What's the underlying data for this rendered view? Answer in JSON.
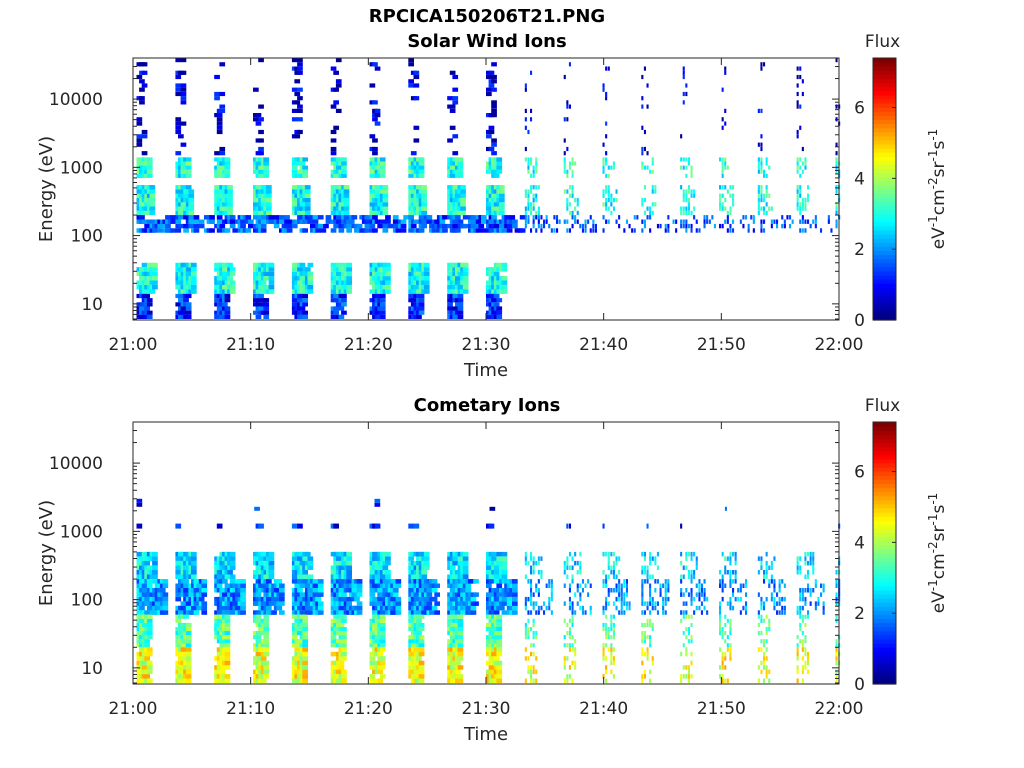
{
  "figure": {
    "title": "RPCICA150206T21.PNG"
  },
  "chart_data": [
    {
      "type": "heatmap",
      "title": "Solar Wind Ions",
      "xlabel": "Time",
      "ylabel": "Energy (eV)",
      "x_range": [
        "21:00",
        "22:00"
      ],
      "x_ticks": [
        "21:00",
        "21:10",
        "21:20",
        "21:30",
        "21:40",
        "21:50",
        "22:00"
      ],
      "y_scale": "log",
      "y_range": [
        5.8,
        40000
      ],
      "y_ticks": [
        "10",
        "100",
        "1000",
        "10000"
      ],
      "colorbar": {
        "title": "Flux",
        "label_base": "eV",
        "label_sup1": "-1",
        "label_mid1": "cm",
        "label_sup2": "-2",
        "label_mid2": "sr",
        "label_sup3": "-1",
        "label_mid3": "s",
        "label_sup4": "-1",
        "range": [
          0,
          7.4
        ],
        "ticks": [
          "0",
          "2",
          "4",
          "6"
        ],
        "colormap": "jet"
      },
      "grid": false,
      "bands": [
        {
          "energy": [
            700,
            1400
          ],
          "flux": 3.0,
          "period_min": 3.3,
          "on_min": 1.0,
          "density": 0.9
        },
        {
          "energy": [
            200,
            550
          ],
          "flux": 2.9,
          "period_min": 3.3,
          "on_min": 1.4,
          "density": 0.95
        },
        {
          "energy": [
            110,
            200
          ],
          "flux": 1.5,
          "period_min": 3.3,
          "on_min": 3.0,
          "density": 0.6
        },
        {
          "energy": [
            14,
            40
          ],
          "flux": 2.9,
          "period_min": 3.3,
          "on_min": 1.5,
          "density": 0.9,
          "t_end_min": 33
        },
        {
          "energy": [
            6,
            14
          ],
          "flux": 1.2,
          "period_min": 3.3,
          "on_min": 1.2,
          "density": 0.8,
          "t_end_min": 33
        },
        {
          "energy": [
            1500,
            40000
          ],
          "flux": 0.6,
          "period_min": 3.3,
          "on_min": 0.6,
          "density": 0.25
        }
      ]
    },
    {
      "type": "heatmap",
      "title": "Cometary Ions",
      "xlabel": "Time",
      "ylabel": "Energy (eV)",
      "x_range": [
        "21:00",
        "22:00"
      ],
      "x_ticks": [
        "21:00",
        "21:10",
        "21:20",
        "21:30",
        "21:40",
        "21:50",
        "22:00"
      ],
      "y_scale": "log",
      "y_range": [
        5.8,
        40000
      ],
      "y_ticks": [
        "10",
        "100",
        "1000",
        "10000"
      ],
      "colorbar": {
        "title": "Flux",
        "label_base": "eV",
        "label_sup1": "-1",
        "label_mid1": "cm",
        "label_sup2": "-2",
        "label_mid2": "sr",
        "label_sup3": "-1",
        "label_mid3": "s",
        "label_sup4": "-1",
        "range": [
          0,
          7.4
        ],
        "ticks": [
          "0",
          "2",
          "4",
          "6"
        ],
        "colormap": "jet"
      },
      "grid": false,
      "bands": [
        {
          "energy": [
            200,
            500
          ],
          "flux": 2.6,
          "period_min": 3.3,
          "on_min": 1.5,
          "density": 0.9
        },
        {
          "energy": [
            60,
            200
          ],
          "flux": 2.0,
          "period_min": 3.3,
          "on_min": 2.5,
          "density": 0.8
        },
        {
          "energy": [
            20,
            60
          ],
          "flux": 3.4,
          "period_min": 3.3,
          "on_min": 1.2,
          "density": 0.85
        },
        {
          "energy": [
            6,
            20
          ],
          "flux": 4.5,
          "period_min": 3.3,
          "on_min": 1.0,
          "density": 0.85
        },
        {
          "energy": [
            1100,
            1300
          ],
          "flux": 1.0,
          "period_min": 3.3,
          "on_min": 0.7,
          "density": 0.6
        },
        {
          "energy": [
            2000,
            3000
          ],
          "flux": 1.0,
          "period_min": 10,
          "on_min": 0.4,
          "density": 0.2
        }
      ]
    }
  ]
}
